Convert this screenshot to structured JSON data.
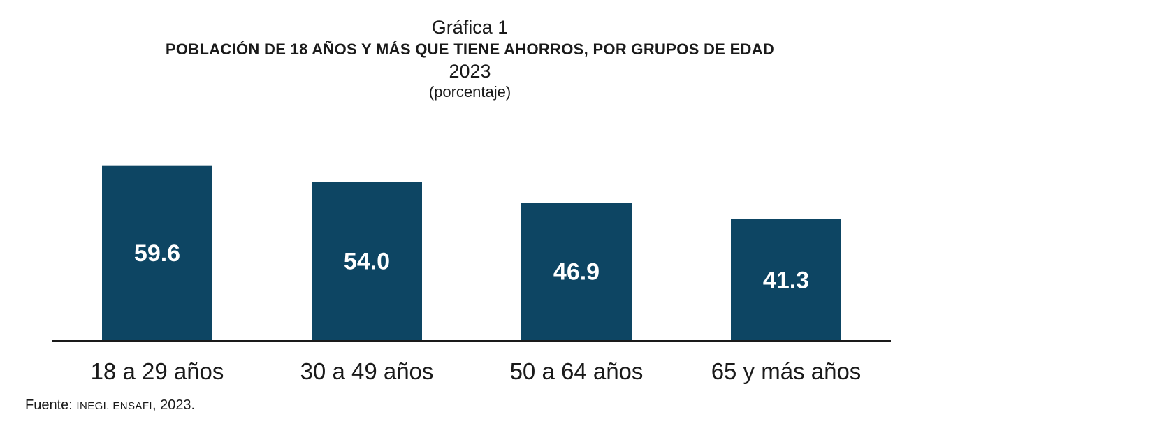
{
  "header": {
    "kicker": "Gráfica 1",
    "title": "POBLACIÓN DE 18 AÑOS Y MÁS QUE TIENE AHORROS, POR GRUPOS DE EDAD",
    "year": "2023",
    "unit": "(porcentaje)"
  },
  "chart_data": {
    "type": "bar",
    "title": "POBLACIÓN DE 18 AÑOS Y MÁS QUE TIENE AHORROS, POR GRUPOS DE EDAD",
    "subtitle": "2023 (porcentaje)",
    "categories": [
      "18 a 29 años",
      "30 a 49 años",
      "50 a 64 años",
      "65 y más años"
    ],
    "values": [
      59.6,
      54.0,
      46.9,
      41.3
    ],
    "value_labels": [
      "59.6",
      "54.0",
      "46.9",
      "41.3"
    ],
    "xlabel": "",
    "ylabel": "",
    "ylim": [
      0,
      62
    ],
    "grid": false,
    "legend": "none",
    "colors": {
      "bar": "#0d4563",
      "bar_label": "#ffffff",
      "axis": "#1a1a1a"
    }
  },
  "source": {
    "label": "Fuente:",
    "org": "INEGI. ENSAFI",
    "year": ", 2023."
  }
}
